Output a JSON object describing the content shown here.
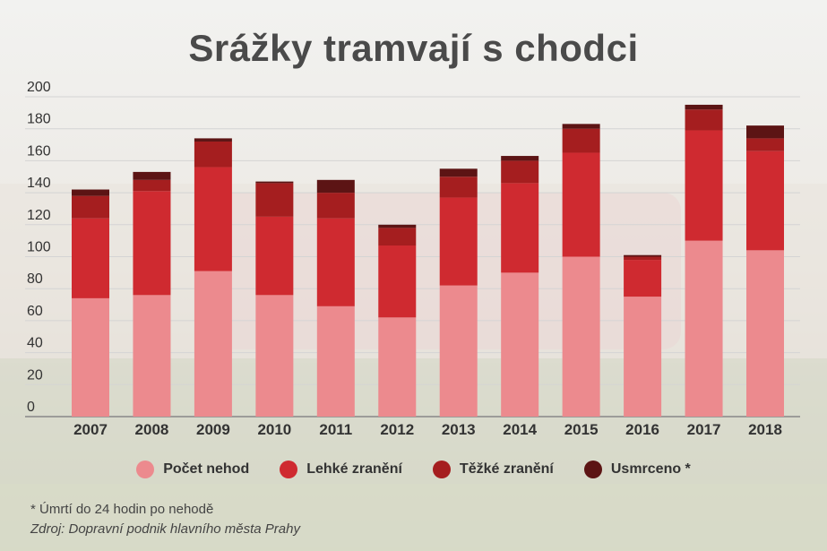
{
  "title": "Srážky tramvají s chodci",
  "footnote": "* Úmrtí do 24 hodin po nehodě",
  "source": "Zdroj: Dopravní podnik hlavního města Prahy",
  "colors": {
    "pocet_nehod": "#ec8a8e",
    "lehke": "#cf2a30",
    "tezke": "#a51e1f",
    "usmrceno": "#5c1414"
  },
  "chart_data": {
    "type": "bar",
    "stacked": true,
    "categories": [
      "2007",
      "2008",
      "2009",
      "2010",
      "2011",
      "2012",
      "2013",
      "2014",
      "2015",
      "2016",
      "2017",
      "2018"
    ],
    "series": [
      {
        "name": "Počet nehod",
        "values": [
          74,
          76,
          91,
          76,
          69,
          62,
          82,
          90,
          100,
          75,
          110,
          104
        ]
      },
      {
        "name": "Lehké zranění",
        "values": [
          50,
          65,
          65,
          49,
          55,
          45,
          55,
          56,
          65,
          23,
          69,
          62
        ]
      },
      {
        "name": "Těžké zranění",
        "values": [
          14,
          7,
          16,
          21,
          16,
          11,
          13,
          14,
          15,
          2,
          13,
          8
        ]
      },
      {
        "name": "Usmrceno *",
        "values": [
          4,
          5,
          2,
          1,
          8,
          2,
          5,
          3,
          3,
          1,
          3,
          8
        ]
      }
    ],
    "yticks": [
      0,
      20,
      40,
      60,
      80,
      100,
      120,
      140,
      160,
      180,
      200
    ],
    "ylim": [
      0,
      200
    ],
    "grid": true,
    "legend_position": "bottom"
  }
}
